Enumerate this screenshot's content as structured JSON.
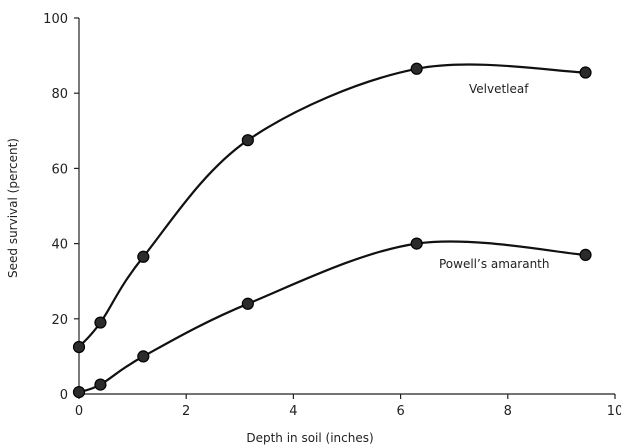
{
  "chart_data": {
    "type": "line",
    "title": "",
    "xlabel": "Depth in soil (inches)",
    "ylabel": "Seed survival (percent)",
    "xlim": [
      0,
      10
    ],
    "ylim": [
      0,
      100
    ],
    "x_ticks": [
      "0",
      "2",
      "4",
      "6",
      "8",
      "10"
    ],
    "y_ticks": [
      "0",
      "20",
      "40",
      "60",
      "80",
      "100"
    ],
    "grid": false,
    "legend": "none (series labeled directly on the chart)",
    "series": [
      {
        "name": "Velvetleaf",
        "x": [
          0,
          0.4,
          1.2,
          3.15,
          6.3,
          9.45
        ],
        "y": [
          12.5,
          19,
          36.5,
          67.5,
          86.5,
          85.5
        ],
        "color": "#111111"
      },
      {
        "name": "Powell’s amaranth",
        "x": [
          0,
          0.4,
          1.2,
          3.15,
          6.3,
          9.45
        ],
        "y": [
          0.5,
          2.5,
          10,
          24,
          40,
          37
        ],
        "color": "#111111"
      }
    ]
  }
}
